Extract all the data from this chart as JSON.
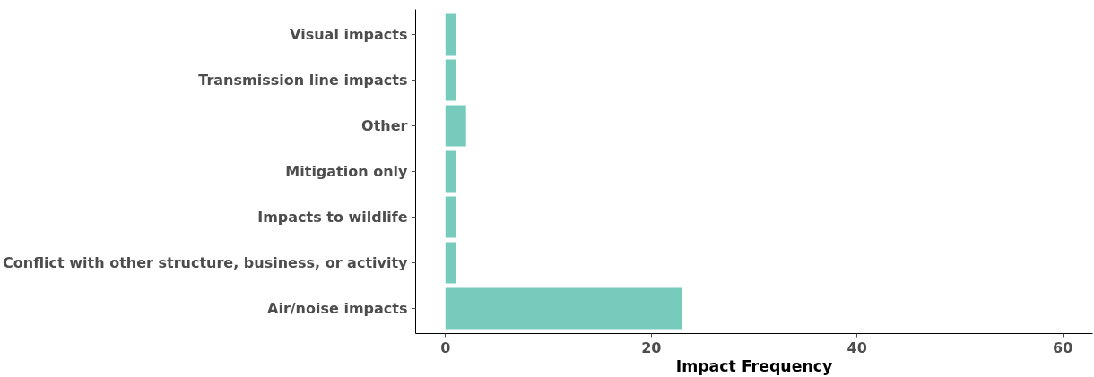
{
  "chart_data": {
    "type": "bar",
    "orientation": "horizontal",
    "xlabel": "Impact Frequency",
    "categories": [
      "Visual impacts",
      "Transmission line impacts",
      "Other",
      "Mitigation only",
      "Impacts to wildlife",
      "Conflict with other structure, business, or activity",
      "Air/noise impacts"
    ],
    "values": [
      1,
      1,
      2,
      1,
      1,
      1,
      23
    ],
    "color": "#76cbbd",
    "xlim": [
      -2.9,
      62.9
    ],
    "xticks": [
      0,
      20,
      40,
      60
    ],
    "grid": false
  }
}
